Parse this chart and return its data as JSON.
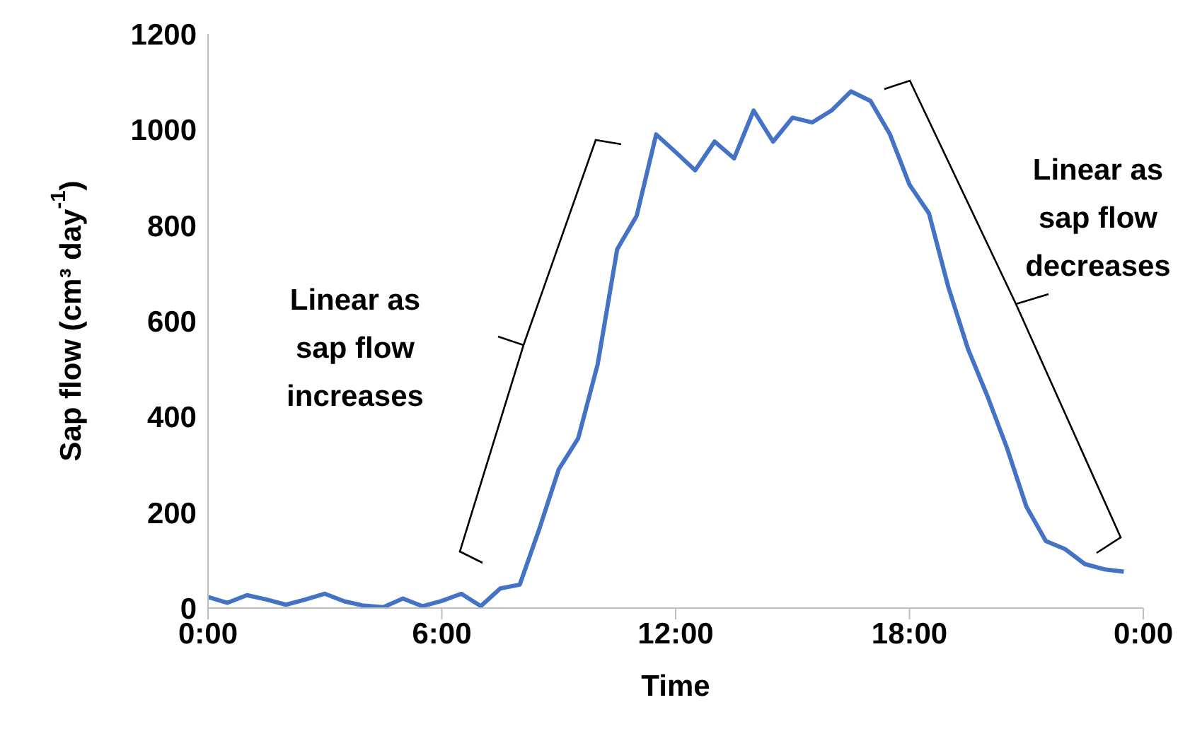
{
  "chart_data": {
    "type": "line",
    "xlabel": "Time",
    "ylabel": "Sap flow (cm³ day$^{-1}$)",
    "x": [
      0,
      0.5,
      1,
      1.5,
      2,
      2.5,
      3,
      3.5,
      4,
      4.5,
      5,
      5.5,
      6,
      6.5,
      7,
      7.5,
      8,
      8.5,
      9,
      9.5,
      10,
      10.5,
      11,
      11.5,
      12,
      12.5,
      13,
      13.5,
      14,
      14.5,
      15,
      15.5,
      16,
      16.5,
      17,
      17.5,
      18,
      18.5,
      19,
      19.5,
      20,
      20.5,
      21,
      21.5,
      22,
      22.5,
      23,
      23.5
    ],
    "series": [
      {
        "color": "#4472c4",
        "values": [
          23,
          11,
          27,
          18,
          7,
          18,
          30,
          14,
          5,
          2,
          20,
          4,
          15,
          30,
          4,
          41,
          49,
          165,
          290,
          355,
          510,
          750,
          820,
          990,
          953,
          915,
          975,
          940,
          1040,
          975,
          1025,
          1015,
          1040,
          1080,
          1060,
          990,
          885,
          825,
          670,
          542,
          443,
          335,
          212,
          140,
          123,
          92,
          81,
          76
        ]
      }
    ],
    "xlim": [
      0,
      24
    ],
    "xticks": [
      {
        "value": 0,
        "label": "0:00"
      },
      {
        "value": 6,
        "label": "6:00"
      },
      {
        "value": 12,
        "label": "12:00"
      },
      {
        "value": 18,
        "label": "18:00"
      },
      {
        "value": 24,
        "label": "0:00"
      }
    ],
    "ylim": [
      0,
      1200
    ],
    "yticks": [
      0,
      200,
      400,
      600,
      800,
      1000,
      1200
    ],
    "grid": false,
    "legend": false,
    "marker": "none",
    "line_style": "solid",
    "annotations": [
      "Linear as sap flow increases",
      "Linear as sap flow decreases"
    ]
  }
}
